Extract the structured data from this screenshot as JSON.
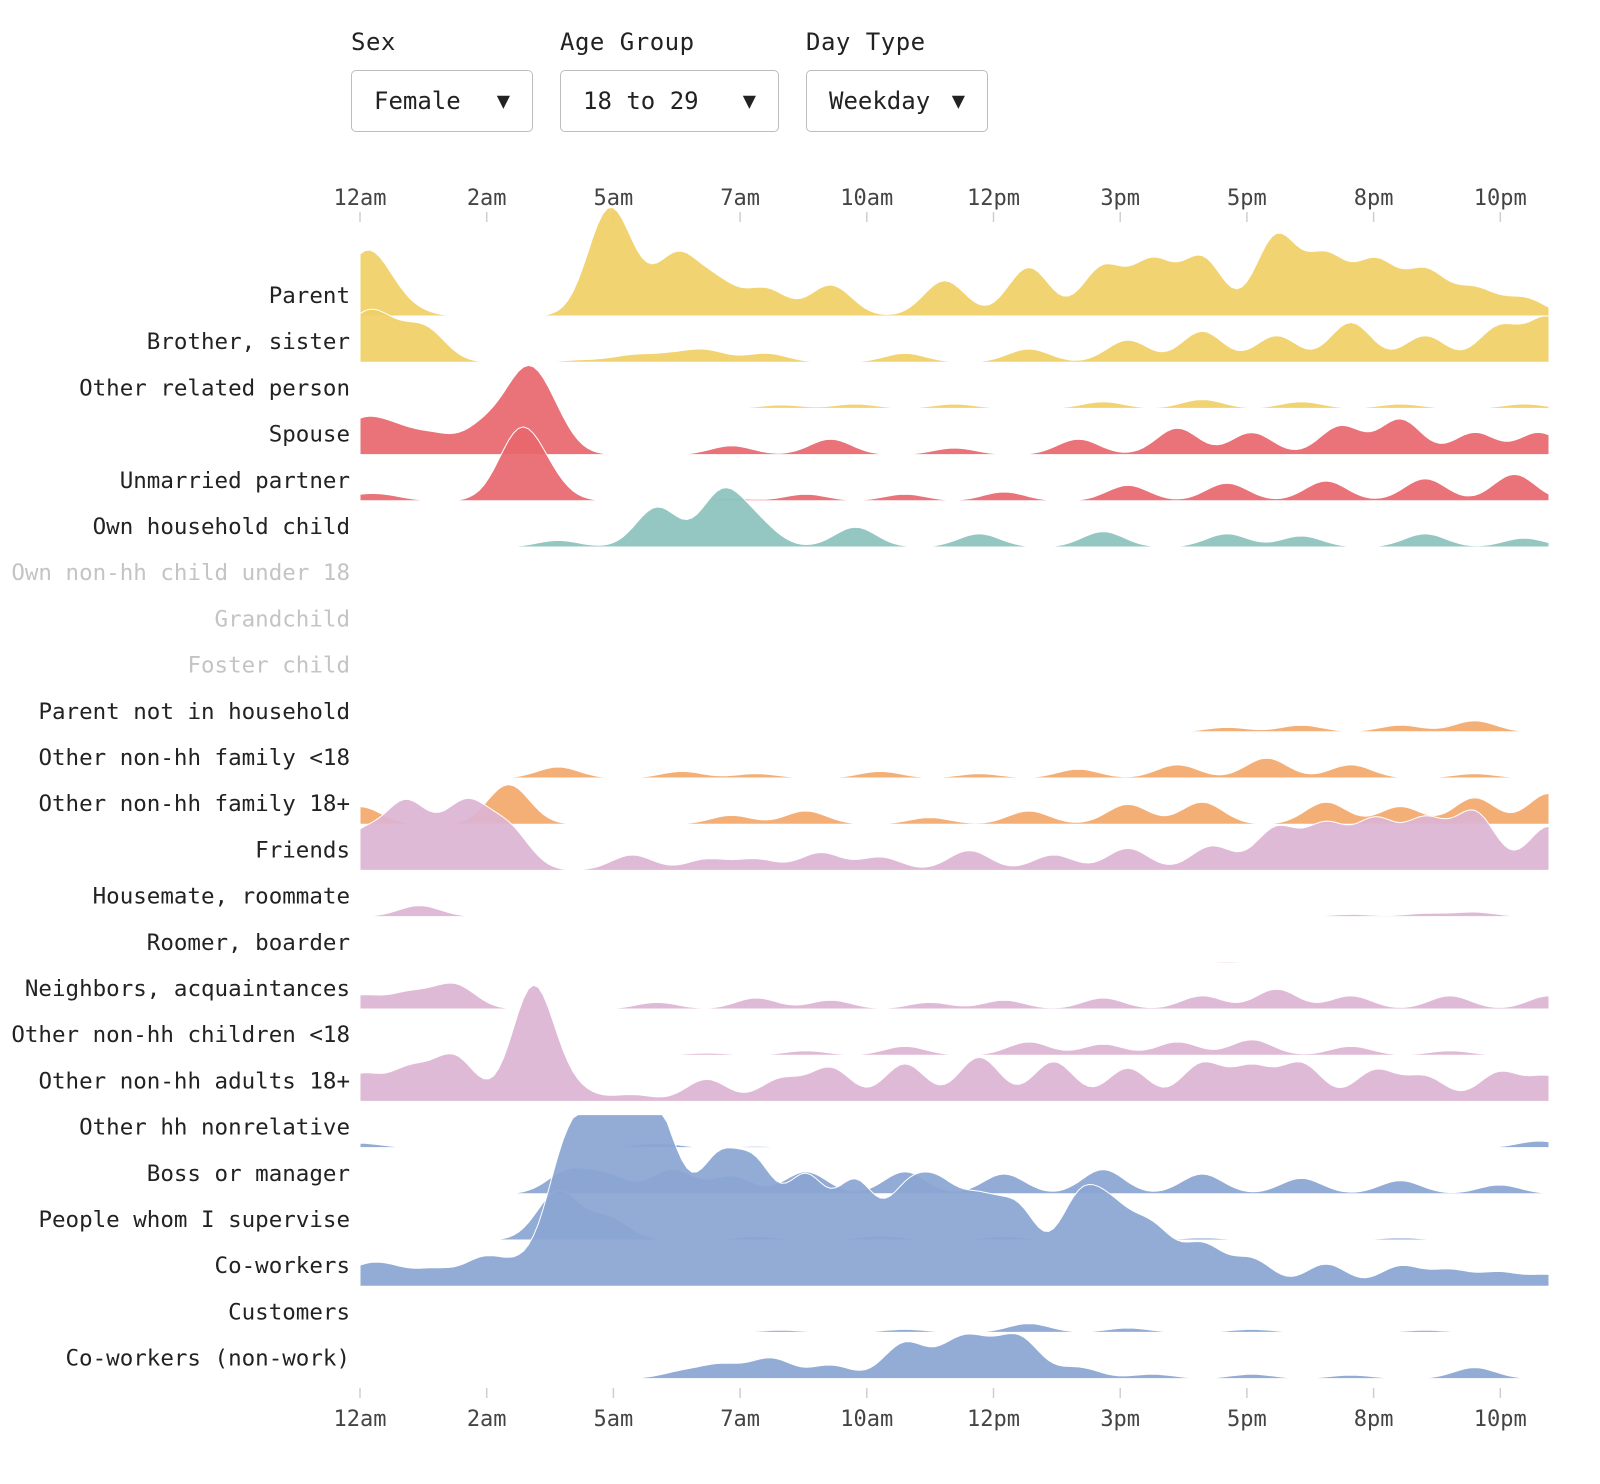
{
  "filters": [
    {
      "label": "Sex",
      "value": "Female"
    },
    {
      "label": "Age Group",
      "value": "18 to 29"
    },
    {
      "label": "Day Type",
      "value": "Weekday"
    }
  ],
  "caret": "▼",
  "chart_data": {
    "type": "area",
    "subtype": "ridgeline",
    "title": "",
    "xlabel": "",
    "ylabel": "",
    "x_unit": "time of day",
    "x_ticks": [
      "12am",
      "2am",
      "5am",
      "7am",
      "10am",
      "12pm",
      "3pm",
      "5pm",
      "8pm",
      "10pm"
    ],
    "colors": {
      "family": "#f0cf65",
      "partner": "#e8676e",
      "child": "#8cc2bd",
      "extended": "#f3a86b",
      "social": "#dcb4d2",
      "work": "#8aa5d3"
    },
    "grid": false,
    "legend": "none",
    "series": [
      {
        "name": "Parent",
        "group": "family",
        "dim": false,
        "peaks": [
          [
            0.0,
            0.9
          ],
          [
            0.35,
            0.7
          ],
          [
            0.9,
            0.15
          ],
          [
            5.0,
            2.2
          ],
          [
            5.5,
            0.5
          ],
          [
            6.4,
            1.3
          ],
          [
            7.2,
            0.7
          ],
          [
            8.2,
            0.6
          ],
          [
            9.5,
            0.7
          ],
          [
            11.8,
            0.8
          ],
          [
            13.5,
            1.1
          ],
          [
            15.0,
            1.1
          ],
          [
            16.0,
            1.2
          ],
          [
            17.0,
            1.3
          ],
          [
            18.5,
            1.8
          ],
          [
            19.5,
            1.3
          ],
          [
            20.5,
            1.2
          ],
          [
            21.5,
            1.0
          ],
          [
            22.5,
            0.6
          ],
          [
            23.5,
            0.4
          ]
        ]
      },
      {
        "name": "Brother, sister",
        "group": "family",
        "dim": false,
        "peaks": [
          [
            0.0,
            0.8
          ],
          [
            0.5,
            0.6
          ],
          [
            1.3,
            0.75
          ],
          [
            4.5,
            0.05
          ],
          [
            5.5,
            0.15
          ],
          [
            6.3,
            0.15
          ],
          [
            7.0,
            0.25
          ],
          [
            8.2,
            0.2
          ],
          [
            11.0,
            0.2
          ],
          [
            13.5,
            0.3
          ],
          [
            15.5,
            0.5
          ],
          [
            17.0,
            0.7
          ],
          [
            18.5,
            0.6
          ],
          [
            20.0,
            0.9
          ],
          [
            21.5,
            0.6
          ],
          [
            23.0,
            0.8
          ],
          [
            24.0,
            1.0
          ]
        ]
      },
      {
        "name": "Other related person",
        "group": "family",
        "dim": false,
        "peaks": [
          [
            8.5,
            0.08
          ],
          [
            10.0,
            0.1
          ],
          [
            12.0,
            0.1
          ],
          [
            15.0,
            0.15
          ],
          [
            17.0,
            0.2
          ],
          [
            19.0,
            0.15
          ],
          [
            21.0,
            0.1
          ],
          [
            23.5,
            0.1
          ]
        ]
      },
      {
        "name": "Spouse",
        "group": "partner",
        "dim": false,
        "peaks": [
          [
            0.0,
            0.7
          ],
          [
            0.7,
            0.5
          ],
          [
            1.5,
            0.4
          ],
          [
            2.5,
            0.6
          ],
          [
            3.3,
            1.5
          ],
          [
            3.8,
            0.8
          ],
          [
            7.5,
            0.2
          ],
          [
            9.5,
            0.35
          ],
          [
            12.0,
            0.15
          ],
          [
            14.5,
            0.35
          ],
          [
            16.5,
            0.6
          ],
          [
            18.0,
            0.5
          ],
          [
            19.8,
            0.65
          ],
          [
            21.0,
            0.8
          ],
          [
            22.5,
            0.5
          ],
          [
            23.8,
            0.5
          ]
        ]
      },
      {
        "name": "Unmarried partner",
        "group": "partner",
        "dim": false,
        "peaks": [
          [
            0.0,
            0.1
          ],
          [
            0.5,
            0.1
          ],
          [
            3.2,
            1.4
          ],
          [
            3.7,
            0.5
          ],
          [
            7.5,
            0.05
          ],
          [
            9.0,
            0.15
          ],
          [
            11.0,
            0.15
          ],
          [
            13.0,
            0.2
          ],
          [
            15.5,
            0.35
          ],
          [
            17.5,
            0.4
          ],
          [
            19.5,
            0.45
          ],
          [
            21.5,
            0.5
          ],
          [
            23.3,
            0.6
          ]
        ]
      },
      {
        "name": "Own household child",
        "group": "child",
        "dim": false,
        "peaks": [
          [
            4.0,
            0.15
          ],
          [
            6.0,
            0.9
          ],
          [
            7.3,
            1.2
          ],
          [
            8.0,
            0.5
          ],
          [
            10.0,
            0.45
          ],
          [
            12.5,
            0.3
          ],
          [
            15.0,
            0.35
          ],
          [
            17.5,
            0.3
          ],
          [
            19.0,
            0.25
          ],
          [
            21.5,
            0.3
          ],
          [
            23.5,
            0.2
          ]
        ]
      },
      {
        "name": "Own non-hh child under 18",
        "group": "child",
        "dim": true,
        "peaks": []
      },
      {
        "name": "Grandchild",
        "group": "child",
        "dim": true,
        "peaks": []
      },
      {
        "name": "Foster child",
        "group": "child",
        "dim": true,
        "peaks": []
      },
      {
        "name": "Parent not in household",
        "group": "extended",
        "dim": false,
        "peaks": [
          [
            10.0,
            0.02
          ],
          [
            17.5,
            0.1
          ],
          [
            19.0,
            0.15
          ],
          [
            21.0,
            0.15
          ],
          [
            22.5,
            0.25
          ]
        ]
      },
      {
        "name": "Other non-hh family <18",
        "group": "extended",
        "dim": false,
        "peaks": [
          [
            4.0,
            0.25
          ],
          [
            6.5,
            0.15
          ],
          [
            8.0,
            0.1
          ],
          [
            10.5,
            0.15
          ],
          [
            12.5,
            0.1
          ],
          [
            14.5,
            0.2
          ],
          [
            16.5,
            0.3
          ],
          [
            18.3,
            0.45
          ],
          [
            20.0,
            0.3
          ],
          [
            22.5,
            0.1
          ]
        ]
      },
      {
        "name": "Other non-hh family 18+",
        "group": "extended",
        "dim": false,
        "peaks": [
          [
            0.0,
            0.4
          ],
          [
            3.0,
            0.9
          ],
          [
            7.5,
            0.2
          ],
          [
            9.0,
            0.3
          ],
          [
            11.5,
            0.15
          ],
          [
            13.5,
            0.3
          ],
          [
            15.5,
            0.45
          ],
          [
            17.0,
            0.5
          ],
          [
            19.5,
            0.5
          ],
          [
            21.0,
            0.4
          ],
          [
            22.5,
            0.6
          ],
          [
            24.0,
            0.7
          ]
        ]
      },
      {
        "name": "Friends",
        "group": "social",
        "dim": false,
        "peaks": [
          [
            0.0,
            0.8
          ],
          [
            0.9,
            1.4
          ],
          [
            1.6,
            0.5
          ],
          [
            2.2,
            1.3
          ],
          [
            3.0,
            0.9
          ],
          [
            5.5,
            0.35
          ],
          [
            7.0,
            0.25
          ],
          [
            8.0,
            0.25
          ],
          [
            9.3,
            0.4
          ],
          [
            10.5,
            0.3
          ],
          [
            12.3,
            0.45
          ],
          [
            14.0,
            0.35
          ],
          [
            15.5,
            0.5
          ],
          [
            17.2,
            0.55
          ],
          [
            18.5,
            0.95
          ],
          [
            19.5,
            1.0
          ],
          [
            20.5,
            1.1
          ],
          [
            21.5,
            1.1
          ],
          [
            22.5,
            1.3
          ],
          [
            24.0,
            1.0
          ]
        ]
      },
      {
        "name": "Housemate, roommate",
        "group": "social",
        "dim": false,
        "peaks": [
          [
            1.2,
            0.25
          ],
          [
            20.0,
            0.05
          ],
          [
            21.5,
            0.07
          ],
          [
            22.5,
            0.1
          ]
        ]
      },
      {
        "name": "Roomer, boarder",
        "group": "social",
        "dim": false,
        "peaks": [
          [
            11.3,
            0.02
          ],
          [
            17.5,
            0.03
          ],
          [
            19.5,
            0.02
          ]
        ]
      },
      {
        "name": "Neighbors, acquaintances",
        "group": "social",
        "dim": false,
        "peaks": [
          [
            0.0,
            0.3
          ],
          [
            1.0,
            0.35
          ],
          [
            1.9,
            0.55
          ],
          [
            6.0,
            0.15
          ],
          [
            8.0,
            0.25
          ],
          [
            9.5,
            0.2
          ],
          [
            11.5,
            0.15
          ],
          [
            13.0,
            0.2
          ],
          [
            15.0,
            0.25
          ],
          [
            17.0,
            0.3
          ],
          [
            18.5,
            0.45
          ],
          [
            20.0,
            0.3
          ],
          [
            22.0,
            0.3
          ],
          [
            24.0,
            0.3
          ]
        ]
      },
      {
        "name": "Other non-hh children <18",
        "group": "social",
        "dim": false,
        "peaks": [
          [
            7.0,
            0.05
          ],
          [
            9.0,
            0.1
          ],
          [
            11.0,
            0.2
          ],
          [
            13.5,
            0.3
          ],
          [
            15.0,
            0.25
          ],
          [
            16.5,
            0.3
          ],
          [
            18.0,
            0.35
          ],
          [
            20.0,
            0.2
          ],
          [
            22.0,
            0.1
          ]
        ]
      },
      {
        "name": "Other non-hh adults 18+",
        "group": "social",
        "dim": false,
        "peaks": [
          [
            0.0,
            0.6
          ],
          [
            1.0,
            0.7
          ],
          [
            1.9,
            1.0
          ],
          [
            3.5,
            2.6
          ],
          [
            4.3,
            0.25
          ],
          [
            5.5,
            0.15
          ],
          [
            7.0,
            0.5
          ],
          [
            8.5,
            0.5
          ],
          [
            9.5,
            0.75
          ],
          [
            11.0,
            0.85
          ],
          [
            12.5,
            1.0
          ],
          [
            14.0,
            0.9
          ],
          [
            15.5,
            0.75
          ],
          [
            17.0,
            0.85
          ],
          [
            18.0,
            0.75
          ],
          [
            19.0,
            0.85
          ],
          [
            20.5,
            0.7
          ],
          [
            21.5,
            0.55
          ],
          [
            23.0,
            0.65
          ],
          [
            24.0,
            0.55
          ]
        ]
      },
      {
        "name": "Other hh nonrelative",
        "group": "work",
        "dim": false,
        "peaks": [
          [
            0.0,
            0.1
          ],
          [
            6.0,
            0.1
          ],
          [
            8.0,
            0.03
          ],
          [
            23.8,
            0.15
          ]
        ]
      },
      {
        "name": "Boss or manager",
        "group": "work",
        "dim": false,
        "peaks": [
          [
            4.2,
            0.5
          ],
          [
            5.0,
            0.4
          ],
          [
            6.3,
            0.55
          ],
          [
            7.5,
            0.4
          ],
          [
            9.0,
            0.5
          ],
          [
            11.0,
            0.5
          ],
          [
            13.0,
            0.45
          ],
          [
            15.0,
            0.55
          ],
          [
            17.0,
            0.45
          ],
          [
            19.0,
            0.35
          ],
          [
            21.0,
            0.3
          ],
          [
            23.0,
            0.2
          ]
        ]
      },
      {
        "name": "People whom I supervise",
        "group": "work",
        "dim": false,
        "peaks": [
          [
            4.0,
            1.1
          ],
          [
            5.0,
            0.5
          ],
          [
            8.0,
            0.08
          ],
          [
            10.5,
            0.1
          ],
          [
            13.0,
            0.08
          ],
          [
            17.0,
            0.05
          ],
          [
            21.0,
            0.05
          ]
        ]
      },
      {
        "name": "Co-workers",
        "group": "work",
        "dim": false,
        "peaks": [
          [
            0.0,
            0.35
          ],
          [
            0.6,
            0.35
          ],
          [
            1.5,
            0.35
          ],
          [
            2.5,
            0.6
          ],
          [
            3.3,
            0.4
          ],
          [
            4.2,
            3.0
          ],
          [
            5.0,
            3.3
          ],
          [
            5.5,
            3.7
          ],
          [
            6.2,
            2.6
          ],
          [
            7.2,
            2.5
          ],
          [
            8.0,
            2.4
          ],
          [
            9.0,
            2.3
          ],
          [
            10.0,
            2.2
          ],
          [
            11.0,
            1.8
          ],
          [
            11.7,
            1.8
          ],
          [
            12.5,
            1.6
          ],
          [
            13.3,
            1.6
          ],
          [
            14.5,
            1.8
          ],
          [
            15.2,
            1.4
          ],
          [
            16.0,
            1.2
          ],
          [
            17.0,
            0.9
          ],
          [
            18.0,
            0.6
          ],
          [
            19.5,
            0.5
          ],
          [
            21.0,
            0.45
          ],
          [
            22.0,
            0.35
          ],
          [
            23.0,
            0.3
          ],
          [
            24.0,
            0.25
          ]
        ]
      },
      {
        "name": "Customers",
        "group": "work",
        "dim": false,
        "peaks": [
          [
            8.5,
            0.05
          ],
          [
            11.0,
            0.07
          ],
          [
            13.5,
            0.2
          ],
          [
            15.5,
            0.1
          ],
          [
            18.0,
            0.07
          ],
          [
            21.5,
            0.05
          ]
        ]
      },
      {
        "name": "Co-workers (non-work)",
        "group": "work",
        "dim": false,
        "peaks": [
          [
            6.5,
            0.15
          ],
          [
            7.3,
            0.3
          ],
          [
            8.3,
            0.45
          ],
          [
            9.5,
            0.3
          ],
          [
            11.0,
            0.8
          ],
          [
            12.0,
            0.6
          ],
          [
            12.5,
            0.55
          ],
          [
            13.3,
            0.9
          ],
          [
            14.5,
            0.25
          ],
          [
            16.0,
            0.1
          ],
          [
            18.0,
            0.1
          ],
          [
            20.0,
            0.08
          ],
          [
            22.5,
            0.25
          ]
        ]
      }
    ]
  }
}
